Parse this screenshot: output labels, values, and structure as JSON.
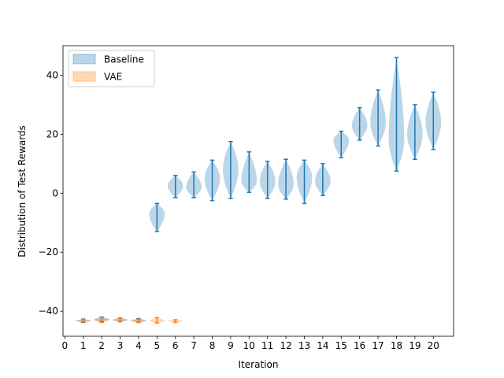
{
  "chart_data": {
    "type": "violin",
    "title": "",
    "xlabel": "Iteration",
    "ylabel": "Distribution of Test Rewards",
    "xlim": [
      -0.1,
      21.1
    ],
    "ylim": [
      -48.5,
      50
    ],
    "xticks": [
      0,
      1,
      2,
      3,
      4,
      5,
      6,
      7,
      8,
      9,
      10,
      11,
      12,
      13,
      14,
      15,
      16,
      17,
      18,
      19,
      20
    ],
    "yticks": [
      -40,
      -20,
      0,
      20,
      40
    ],
    "grid": false,
    "legend": "top-left",
    "colors": {
      "baseline": "#1f77b4",
      "vae": "#ff7f0e"
    },
    "series": [
      {
        "name": "Baseline",
        "violins": [
          {
            "x": 1,
            "min": -43.8,
            "max": -42.7,
            "peak": -43.2
          },
          {
            "x": 2,
            "min": -43.5,
            "max": -42.0,
            "peak": -42.8
          },
          {
            "x": 3,
            "min": -43.5,
            "max": -42.3,
            "peak": -43.0
          },
          {
            "x": 4,
            "min": -43.8,
            "max": -42.5,
            "peak": -43.2
          },
          {
            "x": 5,
            "min": -13.0,
            "max": -3.5,
            "peak": -7.0
          },
          {
            "x": 6,
            "min": -1.5,
            "max": 6.0,
            "peak": 2.5
          },
          {
            "x": 7,
            "min": -1.5,
            "max": 7.2,
            "peak": 2.0
          },
          {
            "x": 8,
            "min": -2.5,
            "max": 11.2,
            "peak": 5.0
          },
          {
            "x": 9,
            "min": -1.8,
            "max": 17.5,
            "peak": 8.0
          },
          {
            "x": 10,
            "min": 0.3,
            "max": 14.0,
            "peak": 4.0
          },
          {
            "x": 11,
            "min": -1.8,
            "max": 10.8,
            "peak": 4.0
          },
          {
            "x": 12,
            "min": -2.0,
            "max": 11.5,
            "peak": 3.0
          },
          {
            "x": 13,
            "min": -3.5,
            "max": 11.2,
            "peak": 5.5
          },
          {
            "x": 14,
            "min": -0.8,
            "max": 10.0,
            "peak": 4.0
          },
          {
            "x": 15,
            "min": 12.0,
            "max": 21.0,
            "peak": 18.0
          },
          {
            "x": 16,
            "min": 18.0,
            "max": 29.0,
            "peak": 23.0
          },
          {
            "x": 17,
            "min": 16.0,
            "max": 35.0,
            "peak": 24.0
          },
          {
            "x": 18,
            "min": 7.5,
            "max": 46.0,
            "peak": 18.0
          },
          {
            "x": 19,
            "min": 11.5,
            "max": 30.0,
            "peak": 20.0
          },
          {
            "x": 20,
            "min": 14.8,
            "max": 34.2,
            "peak": 24.0
          }
        ]
      },
      {
        "name": "VAE",
        "violins": [
          {
            "x": 1,
            "min": -43.6,
            "max": -42.9,
            "peak": -43.2
          },
          {
            "x": 2,
            "min": -43.8,
            "max": -42.2,
            "peak": -43.0
          },
          {
            "x": 3,
            "min": -43.6,
            "max": -42.4,
            "peak": -43.0
          },
          {
            "x": 4,
            "min": -43.8,
            "max": -42.7,
            "peak": -43.3
          },
          {
            "x": 5,
            "min": -44.0,
            "max": -42.2,
            "peak": -43.3
          },
          {
            "x": 6,
            "min": -43.8,
            "max": -42.9,
            "peak": -43.3
          }
        ]
      }
    ]
  }
}
